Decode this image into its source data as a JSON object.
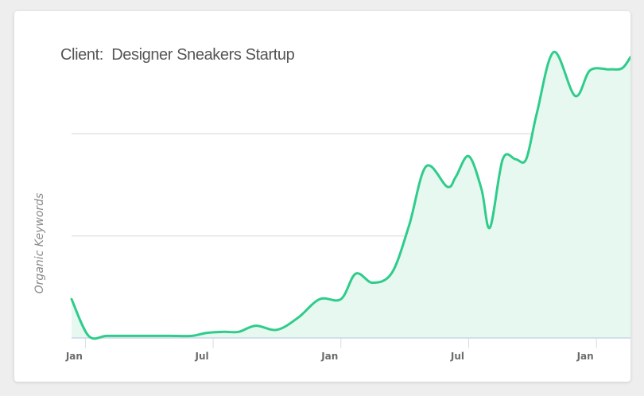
{
  "card": {
    "title": "Client:  Designer Sneakers Startup"
  },
  "chart_data": {
    "type": "area",
    "title": "Client:  Designer Sneakers Startup",
    "xlabel": "",
    "ylabel": "Organic Keywords",
    "x_ticks": [
      "Jan",
      "Jul",
      "Jan",
      "Jul",
      "Jan"
    ],
    "x_tick_months": [
      0,
      6,
      12,
      18,
      24
    ],
    "xlim": [
      -0.65,
      25.6
    ],
    "ylim": [
      0,
      3.2
    ],
    "y_grid_values": [
      1,
      2
    ],
    "grid": "horizontal",
    "legend": "none",
    "line_color": "#2fcc8b",
    "fill_color": "#e6f8f0",
    "x": [
      -0.65,
      0.15,
      1,
      2,
      3,
      4,
      5,
      5.7,
      6.5,
      7.2,
      8,
      9,
      10,
      11,
      12,
      12.7,
      13.5,
      14.4,
      15.2,
      16,
      17,
      17.4,
      18,
      18.6,
      19,
      19.6,
      20.2,
      20.7,
      21.2,
      22,
      23,
      23.7,
      24.6,
      25.2,
      25.6
    ],
    "y": [
      0.38,
      0.02,
      0.02,
      0.02,
      0.02,
      0.02,
      0.02,
      0.05,
      0.06,
      0.06,
      0.12,
      0.08,
      0.2,
      0.38,
      0.38,
      0.63,
      0.54,
      0.64,
      1.1,
      1.68,
      1.48,
      1.58,
      1.78,
      1.46,
      1.08,
      1.75,
      1.75,
      1.75,
      2.2,
      2.8,
      2.37,
      2.62,
      2.63,
      2.64,
      2.75
    ]
  }
}
